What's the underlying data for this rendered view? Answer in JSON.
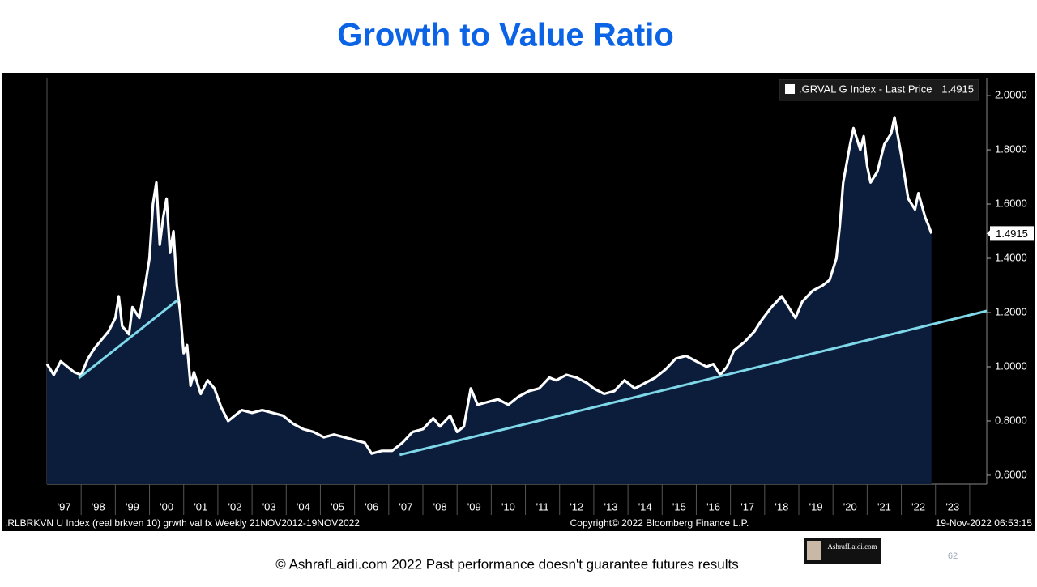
{
  "chart_data": {
    "type": "area",
    "title": "Growth to Value Ratio",
    "series": [
      {
        "name": ".GRVAL G Index - Last Price",
        "color": "#ffffff",
        "fill": "#0b1d3a",
        "x": [
          1997.0,
          1997.2,
          1997.4,
          1997.6,
          1997.8,
          1998.0,
          1998.2,
          1998.4,
          1998.6,
          1998.8,
          1999.0,
          1999.1,
          1999.2,
          1999.4,
          1999.5,
          1999.7,
          1999.9,
          2000.0,
          2000.1,
          2000.2,
          2000.3,
          2000.4,
          2000.5,
          2000.6,
          2000.7,
          2000.8,
          2000.9,
          2001.0,
          2001.1,
          2001.2,
          2001.3,
          2001.5,
          2001.7,
          2001.9,
          2002.1,
          2002.3,
          2002.5,
          2002.7,
          2003.0,
          2003.3,
          2003.6,
          2003.9,
          2004.2,
          2004.5,
          2004.8,
          2005.1,
          2005.4,
          2005.7,
          2006.0,
          2006.3,
          2006.5,
          2006.8,
          2007.1,
          2007.4,
          2007.7,
          2008.0,
          2008.3,
          2008.5,
          2008.8,
          2009.0,
          2009.2,
          2009.4,
          2009.6,
          2009.9,
          2010.2,
          2010.5,
          2010.8,
          2011.1,
          2011.4,
          2011.7,
          2011.9,
          2012.2,
          2012.5,
          2012.8,
          2013.0,
          2013.3,
          2013.6,
          2013.9,
          2014.2,
          2014.5,
          2014.8,
          2015.1,
          2015.4,
          2015.7,
          2016.0,
          2016.3,
          2016.5,
          2016.7,
          2016.9,
          2017.1,
          2017.4,
          2017.7,
          2017.9,
          2018.2,
          2018.5,
          2018.7,
          2018.9,
          2019.1,
          2019.4,
          2019.7,
          2019.9,
          2020.1,
          2020.2,
          2020.3,
          2020.5,
          2020.6,
          2020.8,
          2020.9,
          2021.0,
          2021.1,
          2021.3,
          2021.5,
          2021.7,
          2021.8,
          2022.0,
          2022.1,
          2022.2,
          2022.4,
          2022.5,
          2022.7,
          2022.8,
          2022.88
        ],
        "values": [
          1.01,
          0.97,
          1.02,
          1.0,
          0.98,
          0.97,
          1.03,
          1.07,
          1.1,
          1.13,
          1.18,
          1.26,
          1.15,
          1.12,
          1.22,
          1.18,
          1.32,
          1.4,
          1.6,
          1.68,
          1.45,
          1.55,
          1.62,
          1.42,
          1.5,
          1.3,
          1.2,
          1.05,
          1.08,
          0.93,
          0.98,
          0.9,
          0.95,
          0.92,
          0.85,
          0.8,
          0.82,
          0.84,
          0.83,
          0.84,
          0.83,
          0.82,
          0.79,
          0.77,
          0.76,
          0.74,
          0.75,
          0.74,
          0.73,
          0.72,
          0.68,
          0.69,
          0.69,
          0.72,
          0.76,
          0.77,
          0.81,
          0.78,
          0.82,
          0.76,
          0.78,
          0.92,
          0.86,
          0.87,
          0.88,
          0.86,
          0.89,
          0.91,
          0.92,
          0.96,
          0.95,
          0.97,
          0.96,
          0.94,
          0.92,
          0.9,
          0.91,
          0.95,
          0.92,
          0.94,
          0.96,
          0.99,
          1.03,
          1.04,
          1.02,
          1.0,
          1.01,
          0.97,
          1.0,
          1.06,
          1.09,
          1.13,
          1.17,
          1.22,
          1.26,
          1.22,
          1.18,
          1.24,
          1.28,
          1.3,
          1.32,
          1.4,
          1.52,
          1.68,
          1.82,
          1.88,
          1.8,
          1.85,
          1.74,
          1.68,
          1.72,
          1.82,
          1.86,
          1.92,
          1.78,
          1.7,
          1.62,
          1.58,
          1.64,
          1.55,
          1.52,
          1.4915
        ]
      }
    ],
    "trendlines": [
      {
        "color": "#7fd8ea",
        "x": [
          1997.93,
          2000.84
        ],
        "values": [
          0.958,
          1.248
        ]
      },
      {
        "color": "#7fd8ea",
        "x": [
          2007.32,
          2024.5
        ],
        "values": [
          0.675,
          1.206
        ]
      }
    ],
    "xlim": [
      1997,
      2024.5
    ],
    "ylim": [
      0.567,
      2.054
    ],
    "xticks": [
      {
        "value": 1997.5,
        "label": "'97"
      },
      {
        "value": 1998.5,
        "label": "'98"
      },
      {
        "value": 1999.5,
        "label": "'99"
      },
      {
        "value": 2000.5,
        "label": "'00"
      },
      {
        "value": 2001.5,
        "label": "'01"
      },
      {
        "value": 2002.5,
        "label": "'02"
      },
      {
        "value": 2003.5,
        "label": "'03"
      },
      {
        "value": 2004.5,
        "label": "'04"
      },
      {
        "value": 2005.5,
        "label": "'05"
      },
      {
        "value": 2006.5,
        "label": "'06"
      },
      {
        "value": 2007.5,
        "label": "'07"
      },
      {
        "value": 2008.5,
        "label": "'08"
      },
      {
        "value": 2009.5,
        "label": "'09"
      },
      {
        "value": 2010.5,
        "label": "'10"
      },
      {
        "value": 2011.5,
        "label": "'11"
      },
      {
        "value": 2012.5,
        "label": "'12"
      },
      {
        "value": 2013.5,
        "label": "'13"
      },
      {
        "value": 2014.5,
        "label": "'14"
      },
      {
        "value": 2015.5,
        "label": "'15"
      },
      {
        "value": 2016.5,
        "label": "'16"
      },
      {
        "value": 2017.5,
        "label": "'17"
      },
      {
        "value": 2018.5,
        "label": "'18"
      },
      {
        "value": 2019.5,
        "label": "'19"
      },
      {
        "value": 2020.5,
        "label": "'20"
      },
      {
        "value": 2021.5,
        "label": "'21"
      },
      {
        "value": 2022.5,
        "label": "'22"
      },
      {
        "value": 2023.5,
        "label": "'23"
      }
    ],
    "yticks": [
      {
        "value": 0.6,
        "label": "0.6000"
      },
      {
        "value": 0.8,
        "label": "0.8000"
      },
      {
        "value": 1.0,
        "label": "1.0000"
      },
      {
        "value": 1.2,
        "label": "1.2000"
      },
      {
        "value": 1.4,
        "label": "1.4000"
      },
      {
        "value": 1.6,
        "label": "1.6000"
      },
      {
        "value": 1.8,
        "label": "1.8000"
      },
      {
        "value": 2.0,
        "label": "2.0000"
      }
    ],
    "footer_left": ".RLBRKVN U Index (real brkven 10) grwth val fx  Weekly 21NOV2012-19NOV2022",
    "footer_center": "Copyright© 2022 Bloomberg Finance L.P.",
    "footer_right": "19-Nov-2022 06:53:15"
  },
  "disclaimer": "© AshrafLaidi.com 2022 Past performance doesn't guarantee futures results",
  "logo_text": "AshrafLaidi.com",
  "page_number": 62
}
